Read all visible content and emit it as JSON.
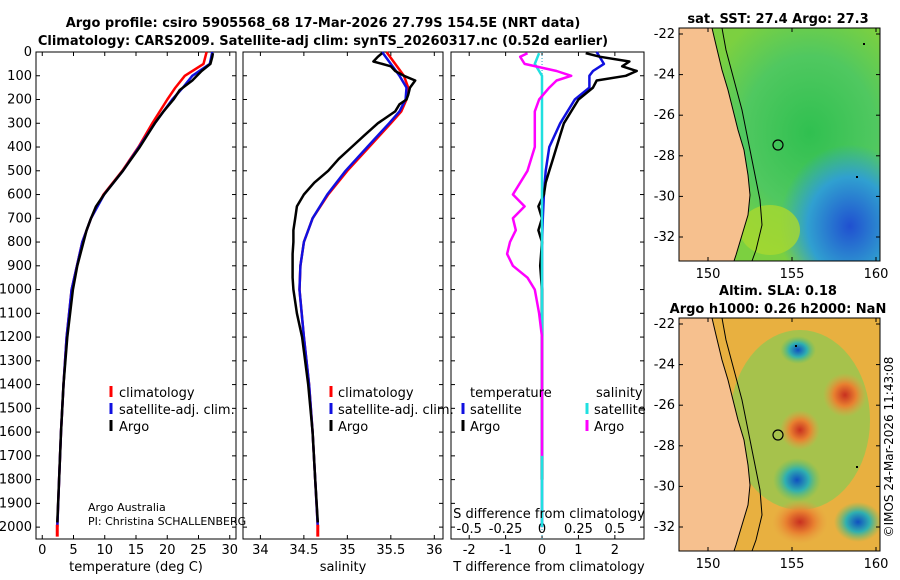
{
  "title": {
    "line1": "Argo profile: csiro 5905568_68 17-Mar-2026 27.79S 154.5E (NRT data)",
    "line2": "Climatology: CARS2009. Satellite-adj clim: synTS_20260317.nc (0.52d earlier)"
  },
  "credits": {
    "line1": "Argo Australia",
    "line2": "PI: Christina SCHALLENBERG"
  },
  "map_titles": {
    "sst": "sat. SST: 27.4 Argo: 27.3",
    "sla1": "Altim. SLA: 0.18",
    "sla2": "Argo h1000: 0.26 h2000: NaN"
  },
  "watermark": "©IMOS 24-Mar-2026 11:43:08",
  "map_axes": {
    "lat_ticks": [
      "-22",
      "-24",
      "-26",
      "-28",
      "-30",
      "-32"
    ],
    "lon_ticks": [
      "150",
      "155",
      "160"
    ]
  },
  "colors": {
    "red": "#ff0000",
    "blue": "#1010e0",
    "black": "#000000",
    "cyan": "#20e0e0",
    "magenta": "#ff00ff",
    "land": "#f6c08e"
  },
  "chart_data": [
    {
      "type": "line",
      "panel": "temperature",
      "xlabel": "temperature (deg C)",
      "ylabel": "",
      "xlim": [
        -1,
        31
      ],
      "ylim": [
        2050,
        0
      ],
      "xticks": [
        0,
        5,
        10,
        15,
        20,
        25,
        30
      ],
      "xtick_labels": [
        "0",
        "5",
        "10",
        "15",
        "20",
        "25",
        "30"
      ],
      "yticks": [
        0,
        100,
        200,
        300,
        400,
        500,
        600,
        700,
        800,
        900,
        1000,
        1100,
        1200,
        1300,
        1400,
        1500,
        1600,
        1700,
        1800,
        1900,
        2000
      ],
      "ytick_labels": [
        "0",
        "100",
        "200",
        "300",
        "400",
        "500",
        "600",
        "700",
        "800",
        "900",
        "1000",
        "1100",
        "1200",
        "1300",
        "1400",
        "1500",
        "1600",
        "1700",
        "1800",
        "1900",
        "2000"
      ],
      "legend": [
        "climatology",
        "satellite-adj. clim.",
        "Argo"
      ],
      "series": [
        {
          "name": "climatology",
          "color": "red",
          "depth": [
            0,
            50,
            100,
            150,
            200,
            300,
            400,
            500,
            600,
            700,
            800,
            1000,
            1200,
            1400,
            1600,
            1800,
            2000
          ],
          "values": [
            26.3,
            25.8,
            22.8,
            21.3,
            20.0,
            17.6,
            15.4,
            12.8,
            9.8,
            7.8,
            6.4,
            4.7,
            3.9,
            3.4,
            3.0,
            2.7,
            2.4
          ]
        },
        {
          "name": "satellite-adj. clim.",
          "color": "blue",
          "depth": [
            0,
            50,
            100,
            150,
            200,
            300,
            400,
            500,
            600,
            700,
            800,
            1000,
            1200,
            1400,
            1600,
            1800,
            2000
          ],
          "values": [
            27.2,
            26.8,
            24.0,
            22.5,
            20.8,
            18.0,
            15.5,
            12.9,
            9.9,
            7.8,
            6.4,
            4.7,
            3.9,
            3.4,
            3.0,
            2.7,
            2.4
          ]
        },
        {
          "name": "Argo",
          "color": "black",
          "depth": [
            5,
            20,
            50,
            80,
            120,
            160,
            200,
            250,
            300,
            400,
            500,
            600,
            650,
            700,
            750,
            800,
            900,
            1000,
            1200,
            1400,
            1600,
            1800,
            1980
          ],
          "values": [
            27.3,
            27.2,
            26.9,
            25.5,
            24.0,
            22.0,
            21.0,
            19.4,
            18.0,
            15.6,
            12.9,
            9.9,
            8.6,
            7.8,
            7.1,
            6.6,
            5.6,
            4.9,
            4.0,
            3.4,
            3.0,
            2.7,
            2.4
          ]
        }
      ]
    },
    {
      "type": "line",
      "panel": "salinity",
      "xlabel": "salinity",
      "ylabel": "",
      "xlim": [
        33.8,
        36.1
      ],
      "ylim": [
        2050,
        0
      ],
      "xticks": [
        34,
        34.5,
        35,
        35.5,
        36
      ],
      "xtick_labels": [
        "34",
        "34.5",
        "35",
        "35.5",
        "36"
      ],
      "legend": [
        "climatology",
        "satellite-adj. clim.",
        "Argo"
      ],
      "series": [
        {
          "name": "climatology",
          "color": "red",
          "depth": [
            0,
            50,
            100,
            150,
            200,
            250,
            300,
            400,
            500,
            600,
            700,
            800,
            900,
            1000,
            1200,
            1400,
            1600,
            1800,
            2000
          ],
          "values": [
            35.45,
            35.55,
            35.65,
            35.7,
            35.68,
            35.62,
            35.5,
            35.25,
            35.0,
            34.78,
            34.6,
            34.5,
            34.46,
            34.45,
            34.5,
            34.56,
            34.6,
            34.63,
            34.66
          ]
        },
        {
          "name": "satellite-adj. clim.",
          "color": "blue",
          "depth": [
            0,
            50,
            100,
            150,
            200,
            250,
            300,
            400,
            500,
            600,
            700,
            800,
            900,
            1000,
            1200,
            1400,
            1600,
            1800,
            2000
          ],
          "values": [
            35.4,
            35.5,
            35.6,
            35.68,
            35.67,
            35.6,
            35.48,
            35.23,
            34.98,
            34.77,
            34.6,
            34.5,
            34.46,
            34.45,
            34.5,
            34.56,
            34.6,
            34.63,
            34.66
          ]
        },
        {
          "name": "Argo",
          "color": "black",
          "depth": [
            5,
            20,
            40,
            60,
            80,
            100,
            120,
            150,
            180,
            200,
            220,
            250,
            300,
            350,
            400,
            450,
            500,
            550,
            600,
            650,
            700,
            750,
            780,
            800,
            850,
            900,
            950,
            1000,
            1100,
            1200,
            1400,
            1600,
            1800,
            1980
          ],
          "values": [
            35.4,
            35.35,
            35.3,
            35.5,
            35.55,
            35.65,
            35.78,
            35.72,
            35.7,
            35.68,
            35.6,
            35.55,
            35.35,
            35.2,
            35.05,
            34.9,
            34.78,
            34.62,
            34.5,
            34.42,
            34.4,
            34.38,
            34.38,
            34.38,
            34.37,
            34.37,
            34.37,
            34.38,
            34.42,
            34.48,
            34.55,
            34.6,
            34.63,
            34.66
          ]
        }
      ]
    },
    {
      "type": "line",
      "panel": "difference",
      "xlabel": "T difference from climatology",
      "ylabel": "",
      "xlim": [
        -2.5,
        2.8
      ],
      "ylim": [
        2050,
        0
      ],
      "xticks": [
        -2,
        -1,
        0,
        1,
        2
      ],
      "xtick_labels": [
        "-2",
        "-1",
        "0",
        "1",
        "2"
      ],
      "top_label": "S difference from climatology",
      "stick_labels": [
        "-0.5",
        "-0.25",
        "0",
        "0.25",
        "0.5"
      ],
      "legend_headers": [
        "temperature",
        "salinity"
      ],
      "legend_temperature": [
        "satellite",
        "Argo"
      ],
      "legend_salinity": [
        "satellite",
        "Argo"
      ],
      "series": [
        {
          "name": "temperature satellite",
          "color": "blue",
          "depth": [
            0,
            50,
            80,
            100,
            150,
            200,
            300,
            400,
            500,
            600,
            700,
            800,
            1000,
            2000
          ],
          "values": [
            1.5,
            1.7,
            1.4,
            1.3,
            1.3,
            0.9,
            0.5,
            0.2,
            0.1,
            0.05,
            0.02,
            0.0,
            0.0,
            0.0
          ]
        },
        {
          "name": "temperature Argo",
          "color": "black",
          "depth": [
            5,
            20,
            40,
            60,
            80,
            100,
            120,
            150,
            200,
            250,
            300,
            350,
            400,
            450,
            500,
            550,
            600,
            650,
            700,
            750,
            800,
            900,
            1000,
            1200,
            1400,
            1600,
            1800
          ],
          "values": [
            1.2,
            1.6,
            2.4,
            2.2,
            2.6,
            2.3,
            1.5,
            1.4,
            1.0,
            0.8,
            0.6,
            0.5,
            0.4,
            0.3,
            0.2,
            0.1,
            0.05,
            -0.1,
            0.0,
            -0.1,
            0.0,
            -0.05,
            0.0,
            0.0,
            0.0,
            0.0,
            0.0
          ]
        },
        {
          "name": "salinity satellite",
          "color": "cyan",
          "depth": [
            5,
            50,
            100,
            200,
            300,
            400,
            500,
            600,
            700,
            800,
            1000,
            1200,
            1400,
            1600,
            1800,
            2000
          ],
          "values": [
            -0.02,
            -0.05,
            0.0,
            0.0,
            0.0,
            0.0,
            0.0,
            0.0,
            0.0,
            0.0,
            0.0,
            0.0,
            0.0,
            0.0,
            0.0,
            0.0
          ]
        },
        {
          "name": "salinity Argo",
          "color": "magenta",
          "depth": [
            5,
            20,
            50,
            80,
            100,
            120,
            150,
            200,
            250,
            300,
            400,
            500,
            600,
            650,
            700,
            750,
            800,
            850,
            900,
            950,
            1000,
            1100,
            1200,
            1400,
            1600,
            1700
          ],
          "values": [
            -0.1,
            -0.15,
            -0.12,
            0.1,
            0.2,
            0.1,
            0.05,
            -0.02,
            -0.05,
            -0.05,
            -0.05,
            -0.1,
            -0.2,
            -0.12,
            -0.2,
            -0.18,
            -0.22,
            -0.24,
            -0.2,
            -0.1,
            -0.05,
            -0.02,
            0.0,
            0.0,
            0.0,
            0.0
          ]
        }
      ]
    }
  ]
}
